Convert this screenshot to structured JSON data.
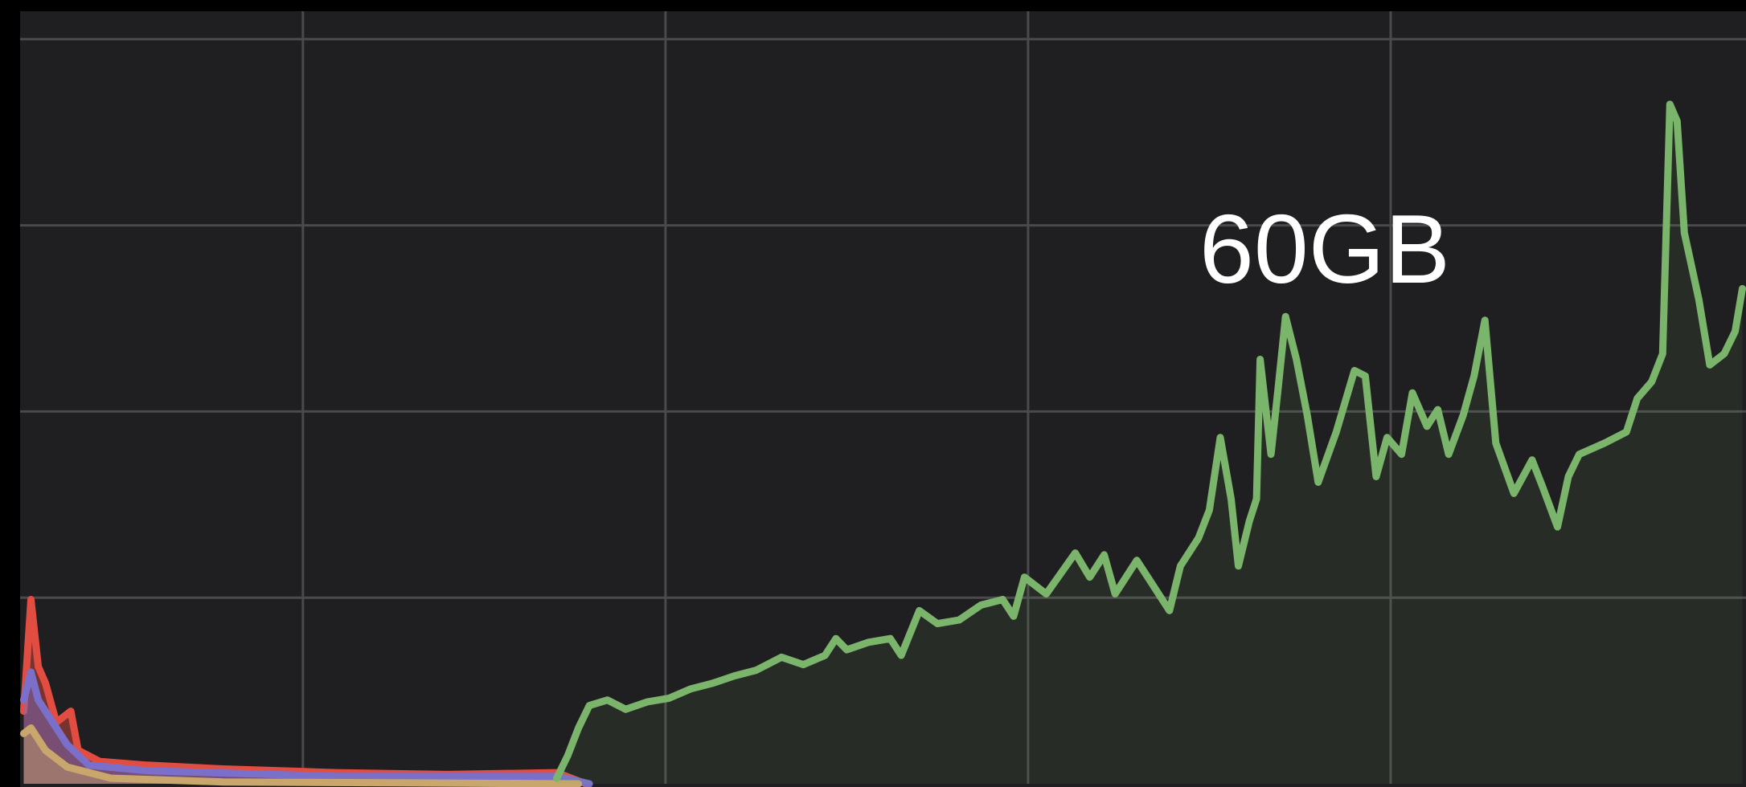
{
  "chart_data": {
    "type": "area",
    "annotation": "60GB",
    "xlim": [
      0.22,
      4.98
    ],
    "ylim": [
      0,
      4.15
    ],
    "xgrid": [
      1,
      2,
      3,
      4
    ],
    "ygrid": [
      1,
      2,
      3,
      4
    ],
    "grid": true,
    "background": "#1f1e20",
    "grid_color": "#4a494b",
    "series": [
      {
        "color": "#e24d42",
        "x": [
          0.23,
          0.25,
          0.27,
          0.29,
          0.32,
          0.34,
          0.36,
          0.38,
          0.44,
          0.57,
          0.78,
          1.09,
          1.4,
          1.7,
          1.78
        ],
        "values": [
          0.39,
          0.99,
          0.63,
          0.54,
          0.33,
          0.36,
          0.39,
          0.18,
          0.12,
          0.1,
          0.08,
          0.06,
          0.05,
          0.06,
          0
        ]
      },
      {
        "color": "#7a6fc9",
        "x": [
          0.23,
          0.25,
          0.27,
          0.31,
          0.35,
          0.41,
          0.57,
          1.09,
          1.7,
          1.79
        ],
        "values": [
          0.45,
          0.6,
          0.45,
          0.33,
          0.21,
          0.1,
          0.07,
          0.04,
          0.04,
          0
        ]
      },
      {
        "color": "#c9a66b",
        "x": [
          0.23,
          0.25,
          0.29,
          0.35,
          0.47,
          0.78,
          1.76
        ],
        "values": [
          0.27,
          0.3,
          0.18,
          0.09,
          0.03,
          0.01,
          0
        ]
      },
      {
        "color": "#7ab56b",
        "x": [
          1.7,
          1.73,
          1.76,
          1.79,
          1.84,
          1.89,
          1.95,
          2.01,
          2.07,
          2.13,
          2.19,
          2.25,
          2.32,
          2.38,
          2.44,
          2.47,
          2.5,
          2.56,
          2.62,
          2.65,
          2.7,
          2.75,
          2.81,
          2.87,
          2.93,
          2.96,
          2.99,
          3.05,
          3.13,
          3.17,
          3.21,
          3.24,
          3.3,
          3.33,
          3.39,
          3.42,
          3.47,
          3.5,
          3.53,
          3.56,
          3.58,
          3.61,
          3.63,
          3.64,
          3.67,
          3.69,
          3.71,
          3.74,
          3.77,
          3.8,
          3.85,
          3.9,
          3.93,
          3.96,
          3.99,
          4.03,
          4.06,
          4.1,
          4.13,
          4.16,
          4.2,
          4.23,
          4.26,
          4.29,
          4.34,
          4.39,
          4.42,
          4.46,
          4.49,
          4.52,
          4.59,
          4.65,
          4.68,
          4.72,
          4.75,
          4.77,
          4.79,
          4.81,
          4.85,
          4.88,
          4.92,
          4.95,
          4.97
        ],
        "values": [
          0.03,
          0.15,
          0.3,
          0.42,
          0.45,
          0.4,
          0.44,
          0.46,
          0.51,
          0.54,
          0.58,
          0.61,
          0.68,
          0.64,
          0.69,
          0.78,
          0.72,
          0.76,
          0.78,
          0.69,
          0.93,
          0.86,
          0.88,
          0.96,
          0.99,
          0.9,
          1.11,
          1.02,
          1.24,
          1.11,
          1.23,
          1.02,
          1.2,
          1.11,
          0.93,
          1.17,
          1.32,
          1.47,
          1.86,
          1.53,
          1.17,
          1.41,
          1.53,
          2.28,
          1.77,
          2.13,
          2.51,
          2.28,
          1.98,
          1.62,
          1.89,
          2.22,
          2.19,
          1.65,
          1.86,
          1.77,
          2.1,
          1.92,
          2.01,
          1.77,
          1.98,
          2.19,
          2.49,
          1.83,
          1.56,
          1.74,
          1.59,
          1.38,
          1.65,
          1.77,
          1.83,
          1.89,
          2.07,
          2.16,
          2.31,
          3.65,
          3.56,
          2.96,
          2.6,
          2.25,
          2.31,
          2.43,
          2.66
        ]
      }
    ]
  }
}
